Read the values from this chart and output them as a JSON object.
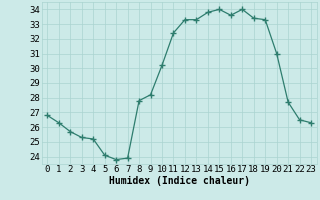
{
  "x": [
    0,
    1,
    2,
    3,
    4,
    5,
    6,
    7,
    8,
    9,
    10,
    11,
    12,
    13,
    14,
    15,
    16,
    17,
    18,
    19,
    20,
    21,
    22,
    23
  ],
  "y": [
    26.8,
    26.3,
    25.7,
    25.3,
    25.2,
    24.1,
    23.8,
    23.9,
    27.8,
    28.2,
    30.2,
    32.4,
    33.3,
    33.3,
    33.8,
    34.0,
    33.6,
    34.0,
    33.4,
    33.3,
    31.0,
    27.7,
    26.5,
    26.3
  ],
  "line_color": "#2e7d6e",
  "marker": "+",
  "marker_size": 4,
  "bg_color": "#cceae8",
  "grid_color": "#aad4d0",
  "xlabel": "Humidex (Indice chaleur)",
  "xlim": [
    -0.5,
    23.5
  ],
  "ylim": [
    23.5,
    34.5
  ],
  "yticks": [
    24,
    25,
    26,
    27,
    28,
    29,
    30,
    31,
    32,
    33,
    34
  ],
  "xticks": [
    0,
    1,
    2,
    3,
    4,
    5,
    6,
    7,
    8,
    9,
    10,
    11,
    12,
    13,
    14,
    15,
    16,
    17,
    18,
    19,
    20,
    21,
    22,
    23
  ],
  "label_fontsize": 7,
  "tick_fontsize": 6.5
}
